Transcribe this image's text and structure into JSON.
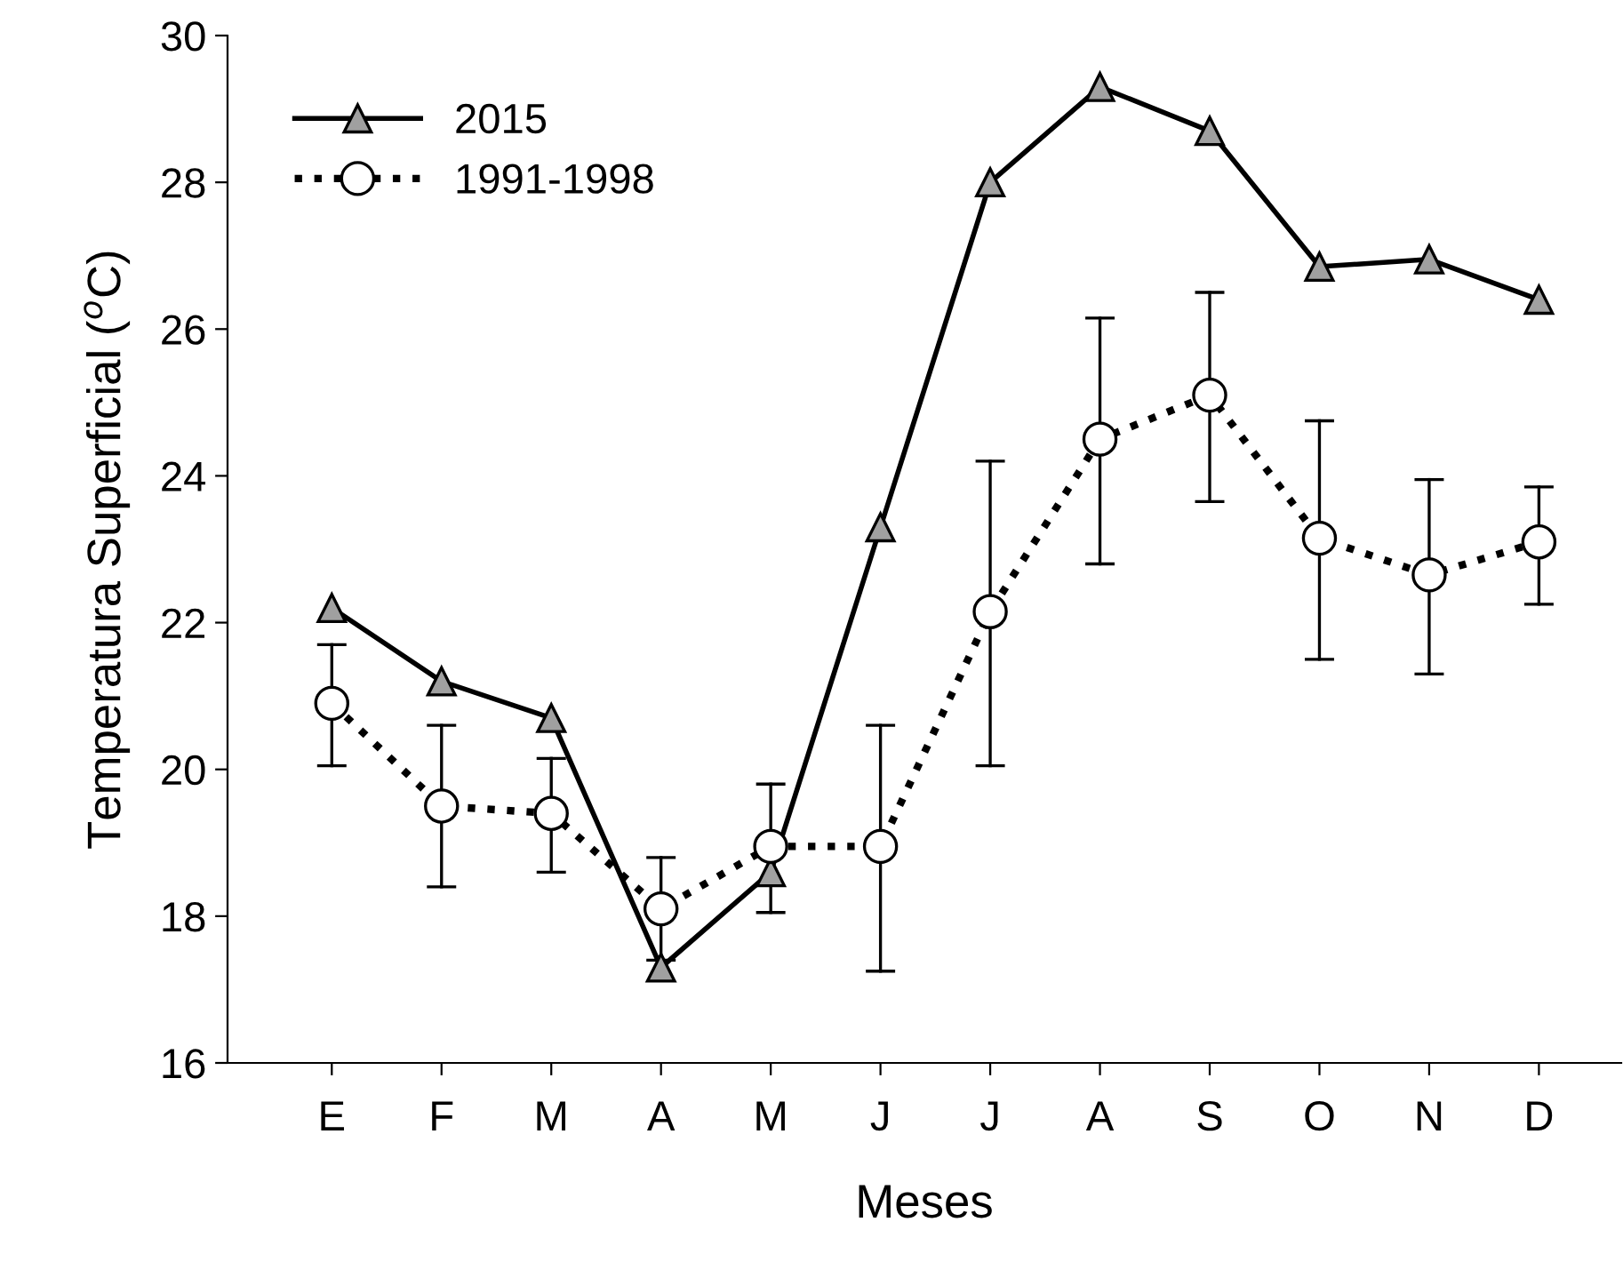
{
  "chart_data": {
    "type": "line",
    "xlabel": "Meses",
    "ylabel": "Temperatura Superficial ($^{o}$C)",
    "categories": [
      "E",
      "F",
      "M",
      "A",
      "M",
      "J",
      "J",
      "A",
      "S",
      "O",
      "N",
      "D"
    ],
    "ylim": [
      16,
      30
    ],
    "yticks": [
      16,
      18,
      20,
      22,
      24,
      26,
      28,
      30
    ],
    "grid": false,
    "legend": "top left",
    "series": [
      {
        "name": "2015",
        "color": "#a0a0a0",
        "marker": "triangle",
        "line_style": "solid",
        "values": [
          22.2,
          21.2,
          20.7,
          17.3,
          18.6,
          23.3,
          28.0,
          29.3,
          28.7,
          26.85,
          26.95,
          26.4
        ]
      },
      {
        "name": "1991-1998",
        "color": "#ffffff",
        "marker": "circle",
        "line_style": "dotted",
        "values": [
          20.9,
          19.5,
          19.4,
          18.1,
          18.95,
          18.95,
          22.15,
          24.5,
          25.1,
          23.15,
          22.65,
          23.1
        ],
        "errors": [
          [
            20.05,
            21.7
          ],
          [
            18.4,
            20.6
          ],
          [
            18.6,
            20.15
          ],
          [
            17.4,
            18.8
          ],
          [
            18.05,
            19.8
          ],
          [
            17.25,
            20.6
          ],
          [
            20.05,
            24.2
          ],
          [
            22.8,
            26.15
          ],
          [
            23.65,
            26.5
          ],
          [
            21.5,
            24.75
          ],
          [
            21.3,
            23.95
          ],
          [
            22.25,
            23.85
          ]
        ]
      }
    ]
  }
}
